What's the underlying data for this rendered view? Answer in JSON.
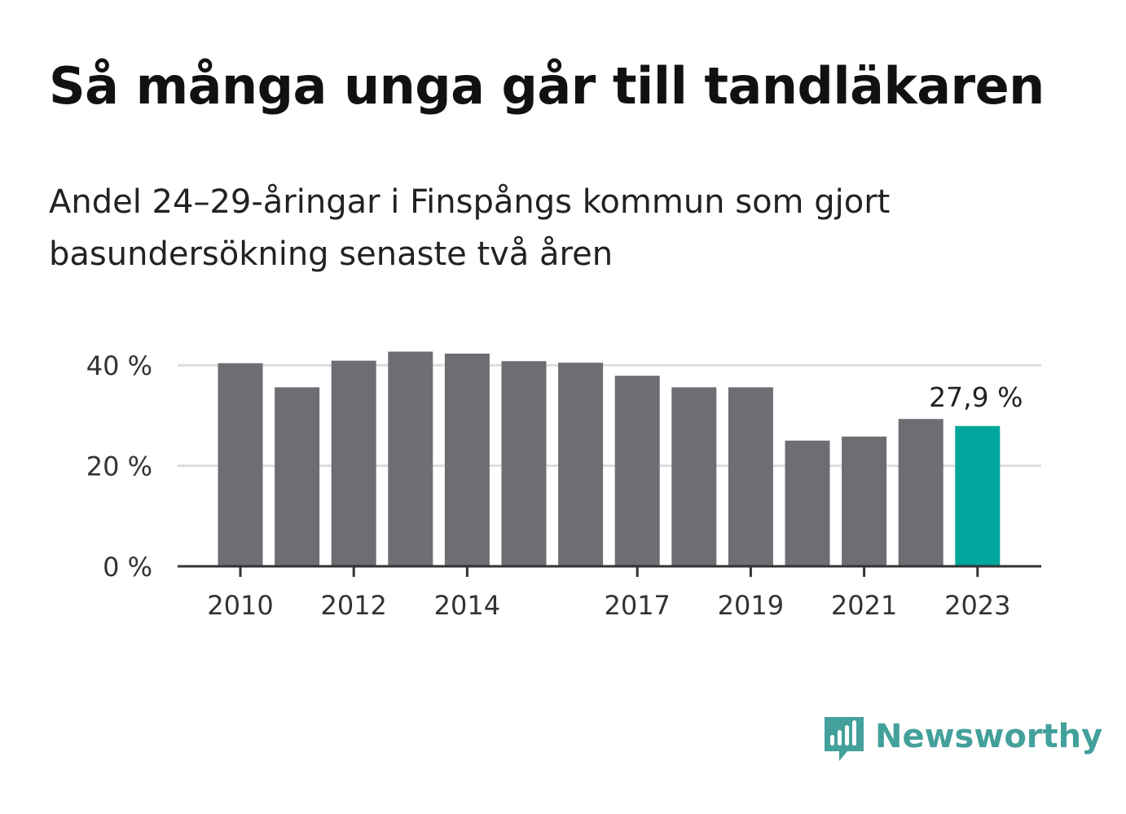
{
  "title": "Så många unga går till tandläkaren",
  "subtitle": "Andel 24–29-åringar i Finspångs kommun som gjort basundersökning senaste två åren",
  "brand": {
    "name": "Newsworthy",
    "icon": "newsworthy-chart-bubble-icon",
    "color": "#43a09b"
  },
  "colors": {
    "bar": "#6e6d73",
    "highlight": "#00a59b",
    "grid": "#dddddd",
    "axis": "#333333"
  },
  "chart_data": {
    "type": "bar",
    "categories": [
      "2010",
      "2011",
      "2012",
      "2013",
      "2014",
      "2015",
      "2016",
      "2017",
      "2018",
      "2019",
      "2020",
      "2021",
      "2022",
      "2023"
    ],
    "values": [
      40.4,
      35.6,
      40.9,
      42.7,
      42.3,
      40.8,
      40.5,
      37.9,
      35.6,
      35.6,
      25.0,
      25.8,
      29.3,
      27.9
    ],
    "ylim": [
      0,
      45
    ],
    "yticks": [
      0,
      20,
      40
    ],
    "ytick_labels": [
      "0 %",
      "20 %",
      "40 %"
    ],
    "xtick_labels": [
      "2010",
      "2012",
      "2014",
      "2017",
      "2019",
      "2021",
      "2023"
    ],
    "highlight_index": 13,
    "value_label": "27,9 %",
    "grid": true
  }
}
